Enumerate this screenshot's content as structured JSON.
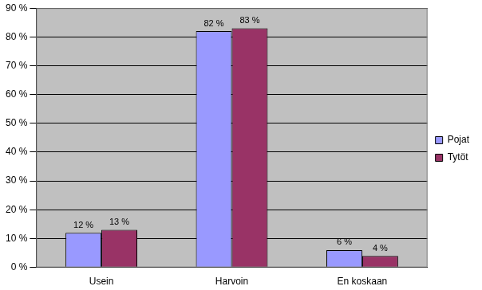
{
  "chart_data": {
    "type": "bar",
    "categories": [
      "Usein",
      "Harvoin",
      "En koskaan"
    ],
    "series": [
      {
        "name": "Pojat",
        "color": "#9999ff",
        "values": [
          12,
          82,
          6
        ],
        "value_labels": [
          "12 %",
          "82 %",
          "6 %"
        ]
      },
      {
        "name": "Tytöt",
        "color": "#993366",
        "values": [
          13,
          83,
          4
        ],
        "value_labels": [
          "13 %",
          "83 %",
          "4 %"
        ]
      }
    ],
    "ylim": [
      0,
      90
    ],
    "yticks": [
      {
        "value": 0,
        "label": "0 %"
      },
      {
        "value": 10,
        "label": "10 %"
      },
      {
        "value": 20,
        "label": "20 %"
      },
      {
        "value": 30,
        "label": "30 %"
      },
      {
        "value": 40,
        "label": "40 %"
      },
      {
        "value": 50,
        "label": "50 %"
      },
      {
        "value": 60,
        "label": "60 %"
      },
      {
        "value": 70,
        "label": "70 %"
      },
      {
        "value": 80,
        "label": "80 %"
      },
      {
        "value": 90,
        "label": "90 %"
      }
    ],
    "grid": true,
    "legend": "right",
    "data_labels": true
  }
}
